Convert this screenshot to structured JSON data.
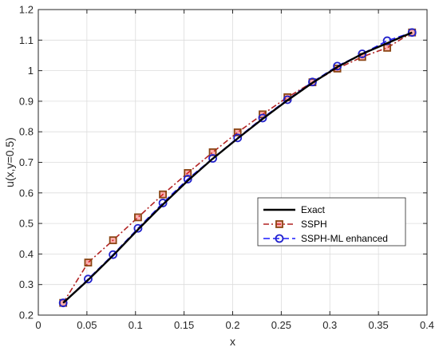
{
  "chart_data": {
    "type": "line",
    "title": "",
    "xlabel": "x",
    "ylabel": "u(x,y=0.5)",
    "xlim": [
      0,
      0.4
    ],
    "ylim": [
      0.2,
      1.2
    ],
    "xticks": [
      0,
      0.05,
      0.1,
      0.15,
      0.2,
      0.25,
      0.3,
      0.35,
      0.4
    ],
    "xtick_labels": [
      "0",
      "0.05",
      "0.1",
      "0.15",
      "0.2",
      "0.25",
      "0.3",
      "0.35",
      "0.4"
    ],
    "yticks": [
      0.2,
      0.3,
      0.4,
      0.5,
      0.6,
      0.7,
      0.8,
      0.9,
      1,
      1.1,
      1.2
    ],
    "ytick_labels": [
      "0.2",
      "0.3",
      "0.4",
      "0.5",
      "0.6",
      "0.7",
      "0.8",
      "0.9",
      "1",
      "1.1",
      "1.2"
    ],
    "grid": true,
    "legend_position": "bottom-right",
    "x": [
      0.0256,
      0.0513,
      0.0769,
      0.1026,
      0.1282,
      0.1538,
      0.1795,
      0.2051,
      0.2308,
      0.2564,
      0.2821,
      0.3077,
      0.3333,
      0.359,
      0.3846
    ],
    "series": [
      {
        "name": "Exact",
        "color": "#000000",
        "line_style": "solid",
        "marker": "none",
        "values": [
          0.24,
          0.315,
          0.395,
          0.48,
          0.562,
          0.64,
          0.712,
          0.778,
          0.842,
          0.903,
          0.96,
          1.012,
          1.055,
          1.09,
          1.125
        ]
      },
      {
        "name": "SSPH",
        "color": "#b22222",
        "marker_color": "#8b4513",
        "marker_fill": "#ff2020",
        "line_style": "dashdot",
        "marker": "square",
        "values": [
          0.24,
          0.372,
          0.445,
          0.52,
          0.595,
          0.665,
          0.733,
          0.798,
          0.857,
          0.913,
          0.962,
          1.007,
          1.045,
          1.075,
          1.125
        ]
      },
      {
        "name": "SSPH-ML enhanced",
        "color": "#1a1aff",
        "marker_color": "#2222cc",
        "line_style": "dashed",
        "marker": "circle",
        "values": [
          0.24,
          0.318,
          0.398,
          0.484,
          0.567,
          0.645,
          0.713,
          0.78,
          0.845,
          0.905,
          0.963,
          1.015,
          1.055,
          1.098,
          1.125
        ]
      }
    ]
  }
}
